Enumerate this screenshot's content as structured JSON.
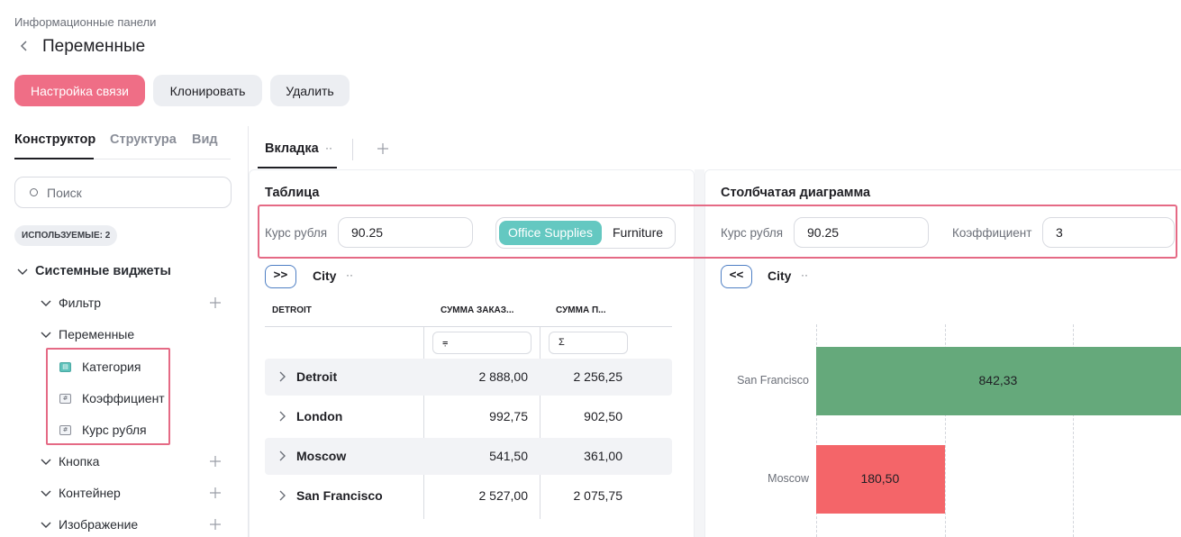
{
  "breadcrumb": "Информационные панели",
  "page_title": "Переменные",
  "toolbar": {
    "connect": "Настройка связи",
    "clone": "Клонировать",
    "delete": "Удалить"
  },
  "left_tabs": [
    "Конструктор",
    "Структура",
    "Вид"
  ],
  "search": {
    "placeholder": "Поиск"
  },
  "used_badge": "ИСПОЛЬЗУЕМЫЕ: 2",
  "tree": {
    "root": "Системные виджеты",
    "filter": "Фильтр",
    "variables": "Переменные",
    "vars": [
      "Категория",
      "Коэффициент",
      "Курс рубля"
    ],
    "button": "Кнопка",
    "container": "Контейнер",
    "image": "Изображение"
  },
  "main_tab": {
    "label": "Вкладка",
    "dots": "··"
  },
  "table_widget": {
    "title": "Таблица",
    "rate_label": "Курс рубля",
    "rate_value": "90.25",
    "seg_on": "Office Supplies",
    "seg_off": "Furniture",
    "drill_btn": ">>",
    "drill_label": "City",
    "drill_dots": "··",
    "headers": [
      "DETROIT",
      "СУММА ЗАКАЗ...",
      "СУММА П..."
    ],
    "agg_icons": [
      "⩦",
      "Σ"
    ],
    "rows": [
      {
        "city": "Detroit",
        "v1": "2 888,00",
        "v2": "2 256,25"
      },
      {
        "city": "London",
        "v1": "992,75",
        "v2": "902,50"
      },
      {
        "city": "Moscow",
        "v1": "541,50",
        "v2": "361,00"
      },
      {
        "city": "San Francisco",
        "v1": "2 527,00",
        "v2": "2 075,75"
      }
    ]
  },
  "bar_widget": {
    "title": "Столбчатая диаграмма",
    "rate_label": "Курс рубля",
    "rate_value": "90.25",
    "coef_label": "Коэффициент",
    "coef_value": "3",
    "drill_btn": "<<",
    "drill_label": "City",
    "drill_dots": "··"
  },
  "chart_data": {
    "type": "bar",
    "orientation": "horizontal",
    "categories": [
      "San Francisco",
      "Moscow"
    ],
    "values": [
      842.33,
      180.5
    ],
    "value_labels": [
      "842,33",
      "180,50"
    ],
    "colors": [
      "#65a97b",
      "#f46569"
    ],
    "grid": true
  },
  "colors": {
    "accent": "#ef6e86",
    "segment_active": "#64c8c1",
    "highlight": "#e56a85",
    "drill_border": "#4e7fc4"
  }
}
